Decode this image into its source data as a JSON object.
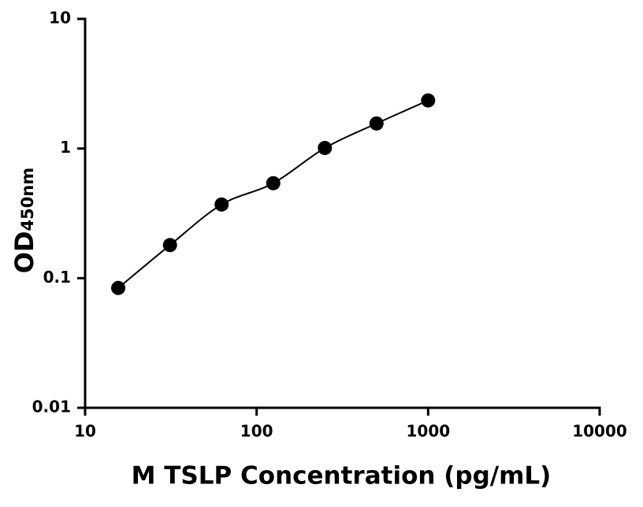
{
  "chart_data": {
    "type": "scatter",
    "xlabel": "M TSLP Concentration (pg/mL)",
    "ylabel": "OD",
    "ylabel_subscript": "450nm",
    "x": [
      15.6,
      31.25,
      62.5,
      125,
      250,
      500,
      1000
    ],
    "values": [
      0.084,
      0.18,
      0.37,
      0.54,
      1.01,
      1.56,
      2.35
    ],
    "color": "#000000",
    "fit_line": true,
    "xscale": "log",
    "yscale": "log",
    "xlim": [
      10,
      10000
    ],
    "xticks": [
      10,
      100,
      1000,
      10000
    ],
    "ylim": [
      0.01,
      10
    ],
    "yticks": [
      0.01,
      0.1,
      1,
      10
    ]
  }
}
